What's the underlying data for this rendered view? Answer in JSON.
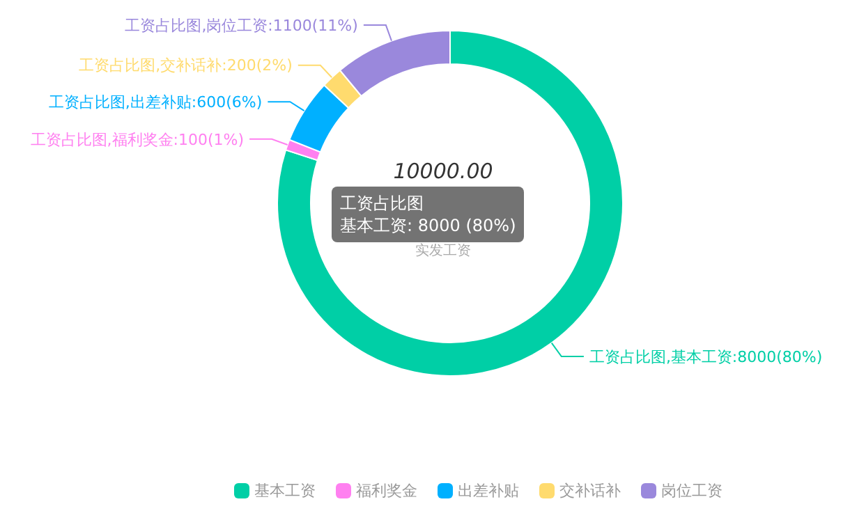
{
  "chart_data": {
    "type": "donut",
    "title": "10000.00",
    "subtitle": "实发工资",
    "categories": [
      "基本工资",
      "福利奖金",
      "出差补贴",
      "交补话补",
      "岗位工资"
    ],
    "values": [
      8000,
      100,
      600,
      200,
      1100
    ],
    "colors": [
      "#00cfa6",
      "#ff80f0",
      "#00b0ff",
      "#ffdb6e",
      "#9a88dc"
    ],
    "value_labels": [
      "工资占比图,基本工资:8000(80%)",
      "工资占比图,福利奖金:100(1%)",
      "工资占比图,出差补贴:600(6%)",
      "工资占比图,交补话补:200(2%)",
      "工资占比图,岗位工资:1100(11%)"
    ],
    "annotations": [
      "工资占比图",
      "基本工资: 8000 (80%)"
    ],
    "legend": "bottom"
  }
}
